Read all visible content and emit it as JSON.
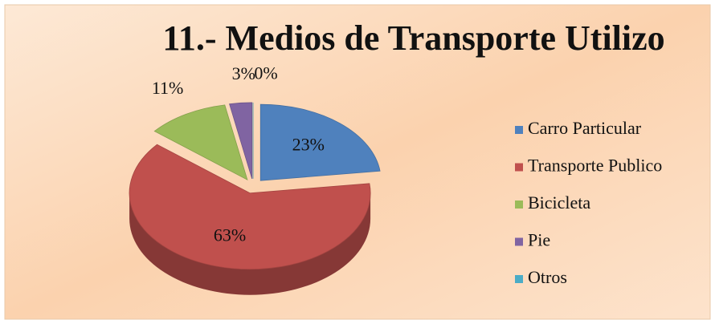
{
  "chart_data": {
    "type": "pie",
    "title": "11.- Medios de Transporte Utilizo",
    "categories": [
      "Carro Particular",
      "Transporte Publico",
      "Bicicleta",
      "Pie",
      "Otros"
    ],
    "values": [
      23,
      63,
      11,
      3,
      0
    ],
    "value_labels": [
      "23%",
      "63%",
      "11%",
      "3%",
      "0%"
    ],
    "colors": [
      "#4f81bd",
      "#c0504d",
      "#9bbb59",
      "#8064a2",
      "#4bacc6"
    ],
    "legend": "right"
  }
}
